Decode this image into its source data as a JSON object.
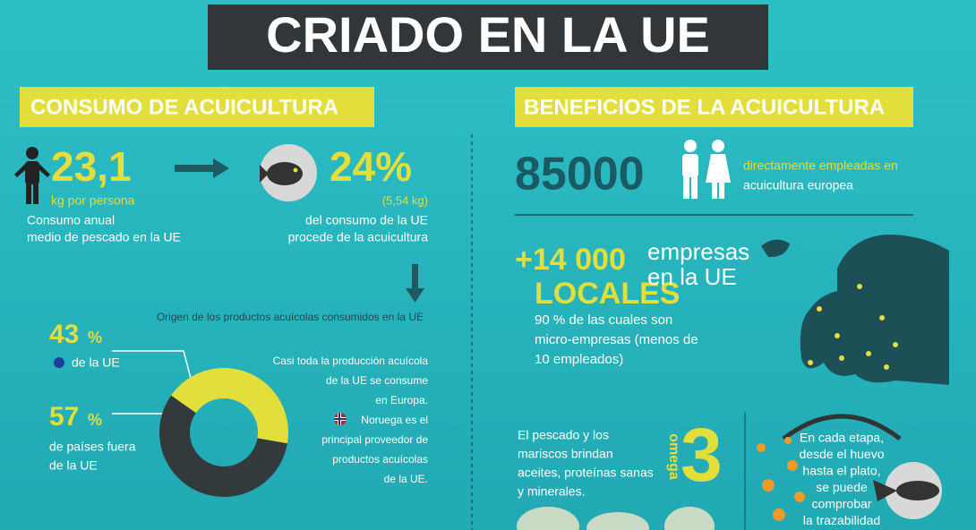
{
  "title": "CRIADO EN LA UE",
  "consumption": {
    "header": "CONSUMO DE ACUICULTURA",
    "per_capita": {
      "value": "23,1",
      "unit": "kg por persona",
      "lines": [
        "Consumo anual",
        "medio de pescado en la UE"
      ]
    },
    "share": {
      "value": "24%",
      "sub": "(5,54 kg)",
      "lines": [
        "del consumo de la UE",
        "procede de la acuicultura"
      ]
    },
    "origin": {
      "title": "Origen de los productos acuícolas consumidos en la UE",
      "segments": [
        {
          "value": 43,
          "unit": "%",
          "lines": [
            "de la UE"
          ],
          "color": "#e2de3c"
        },
        {
          "value": 57,
          "unit": "%",
          "lines": [
            "de países fuera",
            "de la UE"
          ],
          "color": "#333a3c"
        }
      ],
      "note": [
        "Casi toda la producción acuícola",
        "de la UE se consume",
        "en Europa.",
        "Noruega es el",
        "principal proveedor de",
        "productos acuícolas",
        "de la UE."
      ]
    }
  },
  "benefits": {
    "header": "BENEFICIOS DE LA ACUICULTURA",
    "jobs": {
      "value": "85000",
      "lines": [
        "directamente empleadas en",
        "acuicultura europea"
      ]
    },
    "companies": {
      "value": "+14 000",
      "word": "LOCALES",
      "side": [
        "empresas",
        "en la UE"
      ],
      "lines": [
        "90 % de las cuales son",
        "micro-empresas (menos de",
        "10 empleados)"
      ]
    },
    "omega": {
      "lines": [
        "El pescado y los",
        "mariscos brindan",
        "aceites, proteínas sanas",
        "y minerales."
      ],
      "word": "omega",
      "number": "3"
    },
    "trace": {
      "lines": [
        "En cada etapa,",
        "desde el huevo",
        "hasta el plato,",
        "se puede",
        "comprobar",
        "la trazabilidad"
      ]
    }
  }
}
